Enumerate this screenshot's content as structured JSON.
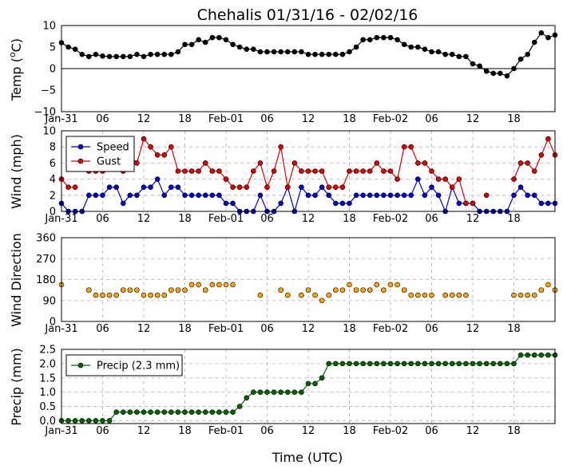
{
  "figure": {
    "title": "Chehalis 01/31/16 - 02/02/16",
    "xlabel": "Time (UTC)",
    "x_ticks": [
      "Jan-31",
      "06",
      "12",
      "18",
      "Feb-01",
      "06",
      "12",
      "18",
      "Feb-02",
      "06",
      "12",
      "18"
    ]
  },
  "chart_data": [
    {
      "type": "line",
      "ylabel": "Temp ($^\\circ$C)",
      "ylabel_main": "Temp (",
      "ylabel_deg": "o",
      "ylabel_unit": "C)",
      "ylim": [
        -10,
        10
      ],
      "yticks": [
        "−10",
        "−5",
        "0",
        "5",
        "10"
      ],
      "ytick_values": [
        -10,
        -5,
        0,
        5,
        10
      ],
      "zero_line": true,
      "grid": false,
      "x_start_hour": 0,
      "series": [
        {
          "color": "#000000",
          "values": [
            6,
            5,
            4.5,
            3.3,
            2.8,
            3.3,
            2.9,
            2.8,
            2.8,
            2.8,
            2.8,
            3.3,
            2.8,
            3.3,
            3.3,
            3.3,
            3.3,
            3.9,
            5.6,
            5.6,
            6.7,
            6.1,
            7.2,
            7.2,
            6.7,
            5.6,
            5,
            4.5,
            4.5,
            3.9,
            3.9,
            3.9,
            3.9,
            3.9,
            3.9,
            3.9,
            3.3,
            3.3,
            3.3,
            3.3,
            3.3,
            3.3,
            3.9,
            5,
            6.7,
            6.7,
            7.2,
            7.2,
            7.2,
            6.7,
            5.6,
            5,
            5,
            4.5,
            3.9,
            3.9,
            3.3,
            3.3,
            2.8,
            2.8,
            1.1,
            0.6,
            -0.6,
            -1.1,
            -1.1,
            -1.7,
            0,
            2.2,
            3.3,
            6.1,
            8.3,
            7.2,
            7.8
          ]
        }
      ]
    },
    {
      "type": "line",
      "ylabel": "Wind (mph)",
      "ylim": [
        0,
        10
      ],
      "yticks": [
        "0",
        "2",
        "4",
        "6",
        "8",
        "10"
      ],
      "ytick_values": [
        0,
        2,
        4,
        6,
        8,
        10
      ],
      "grid": true,
      "x_start_hour": 0,
      "legend": "upper-left",
      "series": [
        {
          "name": "Speed",
          "color": "#0000cc",
          "values": [
            1,
            0,
            0,
            0,
            2,
            2,
            2,
            3,
            3,
            1,
            2,
            2,
            3,
            3,
            4,
            2,
            3,
            3,
            2,
            2,
            2,
            2,
            2,
            2,
            1,
            1,
            0,
            0,
            0,
            2,
            0,
            0,
            1,
            3,
            0,
            3,
            2,
            2,
            3,
            2,
            1,
            1,
            1,
            2,
            2,
            2,
            2,
            2,
            2,
            2,
            2,
            2,
            4,
            2,
            3,
            2,
            0,
            3,
            1,
            1,
            1,
            0,
            0,
            0,
            0,
            0,
            2,
            3,
            2,
            2,
            1,
            1,
            1
          ]
        },
        {
          "name": "Gust",
          "color": "#dd0000",
          "values": [
            4,
            3,
            3,
            null,
            5,
            5,
            5,
            null,
            null,
            5,
            7,
            6,
            9,
            8,
            7,
            7,
            8,
            5,
            5,
            5,
            5,
            6,
            5,
            5,
            4,
            3,
            3,
            3,
            5,
            6,
            3,
            5,
            8,
            3,
            6,
            5,
            5,
            5,
            5,
            3,
            3,
            3,
            5,
            5,
            5,
            5,
            6,
            5,
            5,
            4,
            8,
            8,
            6,
            6,
            5,
            4,
            4,
            3,
            4,
            1,
            1,
            null,
            2,
            null,
            null,
            null,
            4,
            6,
            6,
            5,
            7,
            9,
            7
          ]
        }
      ]
    },
    {
      "type": "scatter",
      "ylabel": "Wind Direction",
      "ylim": [
        0,
        360
      ],
      "yticks": [
        "0",
        "90",
        "180",
        "270",
        "360"
      ],
      "ytick_values": [
        0,
        90,
        180,
        270,
        360
      ],
      "grid": true,
      "x_start_hour": 0,
      "series": [
        {
          "color": "#ffa500",
          "values": [
            158,
            null,
            null,
            null,
            135,
            113,
            113,
            113,
            113,
            135,
            135,
            135,
            113,
            113,
            113,
            113,
            135,
            135,
            135,
            158,
            158,
            135,
            158,
            158,
            158,
            158,
            null,
            null,
            null,
            113,
            null,
            null,
            135,
            113,
            null,
            113,
            135,
            113,
            90,
            113,
            135,
            135,
            158,
            135,
            135,
            135,
            158,
            135,
            158,
            158,
            135,
            113,
            113,
            113,
            113,
            null,
            113,
            113,
            113,
            113,
            null,
            null,
            null,
            null,
            null,
            null,
            113,
            113,
            113,
            113,
            135,
            158,
            135
          ]
        }
      ]
    },
    {
      "type": "line",
      "ylabel": "Precip (mm)",
      "ylim": [
        -0.1,
        2.5
      ],
      "yticks": [
        "0.0",
        "0.5",
        "1.0",
        "1.5",
        "2.0",
        "2.5"
      ],
      "ytick_values": [
        0,
        0.5,
        1,
        1.5,
        2,
        2.5
      ],
      "grid": true,
      "x_start_hour": 0,
      "legend": "upper-left",
      "series": [
        {
          "name": "Precip (2.3 mm)",
          "color": "#006400",
          "values": [
            0,
            0,
            0,
            0,
            0,
            0,
            0,
            0,
            0.3,
            0.3,
            0.3,
            0.3,
            0.3,
            0.3,
            0.3,
            0.3,
            0.3,
            0.3,
            0.3,
            0.3,
            0.3,
            0.3,
            0.3,
            0.3,
            0.3,
            0.3,
            0.5,
            0.8,
            1,
            1,
            1,
            1,
            1,
            1,
            1,
            1,
            1.3,
            1.3,
            1.5,
            2,
            2,
            2,
            2,
            2,
            2,
            2,
            2,
            2,
            2,
            2,
            2,
            2,
            2,
            2,
            2,
            2,
            2,
            2,
            2,
            2,
            2,
            2,
            2,
            2,
            2,
            2,
            2,
            2.3,
            2.3,
            2.3,
            2.3,
            2.3,
            2.3
          ]
        }
      ]
    }
  ]
}
